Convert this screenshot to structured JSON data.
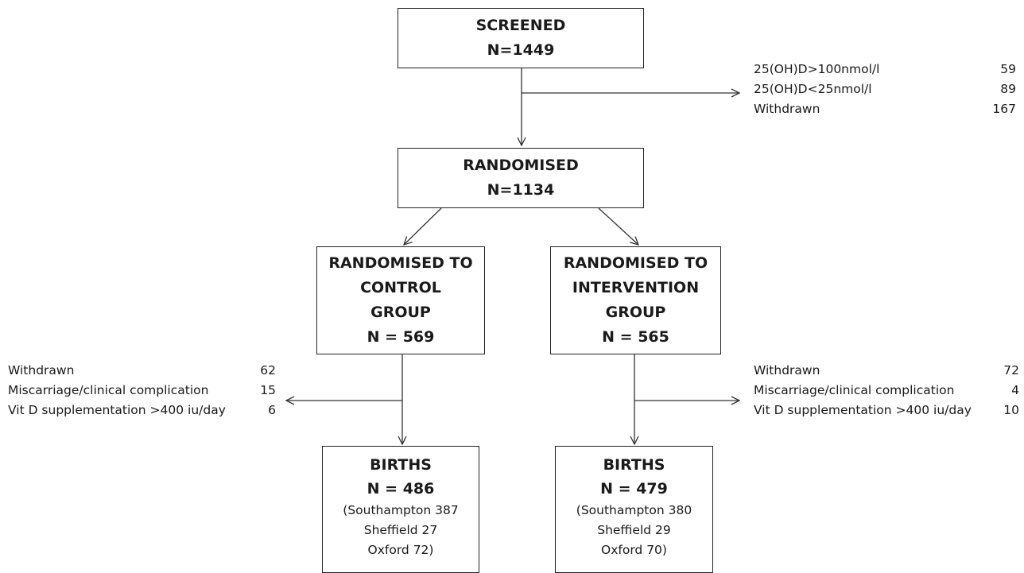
{
  "nodes": {
    "screened": {
      "lines": [
        "SCREENED",
        "N=1449"
      ]
    },
    "randomised": {
      "lines": [
        "RANDOMISED",
        "N=1134"
      ]
    },
    "control": {
      "lines": [
        "RANDOMISED TO",
        "CONTROL",
        "GROUP",
        "N = 569"
      ]
    },
    "intervention": {
      "lines": [
        "RANDOMISED TO",
        "INTERVENTION",
        "GROUP",
        "N = 565"
      ]
    },
    "births_control": {
      "lines": [
        "BIRTHS",
        "N = 486"
      ],
      "sub": [
        "(Southampton 387",
        "Sheffield 27",
        "Oxford 72)"
      ]
    },
    "births_intervention": {
      "lines": [
        "BIRTHS",
        "N = 479"
      ],
      "sub": [
        "(Southampton 380",
        "Sheffield 29",
        "Oxford 70)"
      ]
    }
  },
  "exclusions": {
    "screen": [
      {
        "label": "25(OH)D>100nmol/l",
        "value": "59"
      },
      {
        "label": "25(OH)D<25nmol/l",
        "value": "89"
      },
      {
        "label": "Withdrawn",
        "value": "167"
      }
    ],
    "control": [
      {
        "label": "Withdrawn",
        "value": "62"
      },
      {
        "label": "Miscarriage/clinical complication",
        "value": "15"
      },
      {
        "label": "Vit D supplementation >400 iu/day",
        "value": "6"
      }
    ],
    "intervention": [
      {
        "label": "Withdrawn",
        "value": "72"
      },
      {
        "label": "Miscarriage/clinical complication",
        "value": "4"
      },
      {
        "label": "Vit D supplementation >400 iu/day",
        "value": "10"
      }
    ]
  }
}
